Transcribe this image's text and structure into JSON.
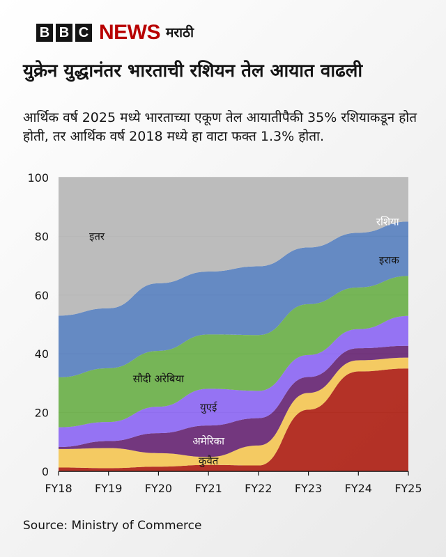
{
  "brand": {
    "letters": [
      "B",
      "B",
      "C"
    ],
    "news": "NEWS",
    "language": "मराठी"
  },
  "title": "युक्रेन युद्धानंतर भारताची रशियन तेल आयात वाढली",
  "subtitle": "आर्थिक वर्ष 2025 मध्ये भारताच्या एकूण तेल आयातीपैकी 35% रशियाकडून होत होती, तर आर्थिक वर्ष 2018 मध्ये हा वाटा फक्त 1.3% होता.",
  "source": "Source: Ministry of Commerce",
  "chart_data": {
    "type": "area",
    "subtype": "stacked-area with rank crossing (share of total, %)",
    "categories": [
      "FY18",
      "FY19",
      "FY20",
      "FY21",
      "FY22",
      "FY23",
      "FY24",
      "FY25"
    ],
    "ylim": [
      0,
      100
    ],
    "yticks": [
      0,
      20,
      40,
      60,
      80,
      100
    ],
    "grid": true,
    "series": [
      {
        "name": "रशिया",
        "color": "#b0271b",
        "values": [
          1.3,
          1.1,
          1.6,
          2.2,
          2.0,
          21.0,
          34.0,
          35.0
        ]
      },
      {
        "name": "कुवैत",
        "color": "#f3c75a",
        "values": [
          6.3,
          6.8,
          4.6,
          2.7,
          6.8,
          5.7,
          3.8,
          3.7
        ]
      },
      {
        "name": "अमेरिका",
        "color": "#6b2c77",
        "values": [
          0.7,
          2.4,
          6.8,
          10.7,
          9.3,
          5.4,
          4.1,
          4.0
        ]
      },
      {
        "name": "युएई",
        "color": "#8f6cf2",
        "values": [
          6.7,
          6.5,
          9.0,
          12.5,
          9.3,
          7.5,
          6.5,
          10.2
        ]
      },
      {
        "name": "सौदी अरेबिया",
        "color": "#6fb14e",
        "values": [
          17.0,
          18.3,
          19.0,
          18.5,
          19.0,
          17.3,
          14.2,
          13.6
        ]
      },
      {
        "name": "इराक",
        "color": "#5d84c0",
        "values": [
          21.0,
          20.4,
          23.0,
          21.4,
          23.4,
          19.3,
          18.6,
          18.5
        ]
      },
      {
        "name": "इतर",
        "color": "#b8b8b8",
        "values": [
          47.0,
          44.5,
          36.0,
          32.0,
          30.2,
          23.8,
          18.8,
          15.0
        ]
      }
    ],
    "annotations": [
      {
        "series": "इतर",
        "at": "FY18"
      },
      {
        "series": "रशिया",
        "at": "FY24"
      },
      {
        "series": "इराक",
        "at": "FY24"
      },
      {
        "series": "सौदी अरेबिया",
        "at": "FY20"
      },
      {
        "series": "युएई",
        "at": "FY21"
      },
      {
        "series": "अमेरिका",
        "at": "FY21"
      },
      {
        "series": "कुवैत",
        "at": "FY21"
      }
    ]
  }
}
